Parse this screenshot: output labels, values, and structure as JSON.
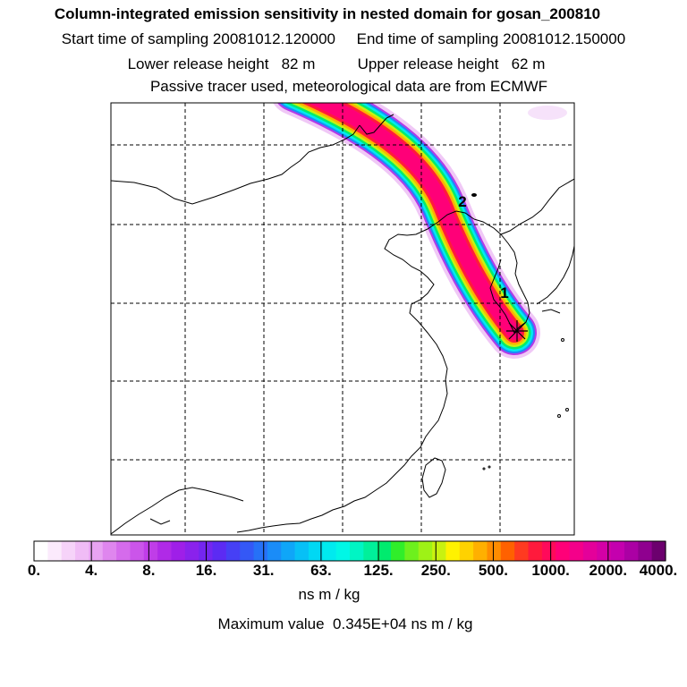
{
  "header": {
    "title": "Column-integrated emission sensitivity in nested domain for gosan_200810",
    "line2": "Start time of sampling 20081012.120000     End time of sampling 20081012.150000",
    "line3": "Lower release height   82 m          Upper release height   62 m",
    "line4": "Passive tracer used, meteorological data are from ECMWF"
  },
  "trajectory_labels": [
    "2",
    "1"
  ],
  "colorbar": {
    "tick_labels": [
      "0.",
      "4.",
      "8.",
      "16.",
      "31.",
      "63.",
      "125.",
      "250.",
      "500.",
      "1000.",
      "2000.",
      "4000."
    ],
    "units": "ns m / kg",
    "max_value_text": "Maximum value  0.345E+04 ns m / kg",
    "colors": [
      "#ffffff",
      "#fbeafc",
      "#f6d3f9",
      "#f0bcf6",
      "#e8a3f2",
      "#df86ee",
      "#d56bec",
      "#cb55ea",
      "#c03de8",
      "#b02ae7",
      "#9f1fe8",
      "#8a22ec",
      "#7426f0",
      "#5c2bf3",
      "#4640f5",
      "#3458f6",
      "#2671f7",
      "#1a8cf8",
      "#0fa6f8",
      "#07c0f6",
      "#00d8f4",
      "#00eaef",
      "#00f7e6",
      "#00f5c4",
      "#00f09a",
      "#00eb6e",
      "#30ee2a",
      "#6df01d",
      "#9ef216",
      "#c8f210",
      "#fff200",
      "#ffd200",
      "#ffb000",
      "#ff8c00",
      "#ff6100",
      "#ff3a20",
      "#ff1a3c",
      "#ff0a5a",
      "#ff0078",
      "#f4008a",
      "#e4009a",
      "#d400a6",
      "#c400ae",
      "#ab00a4",
      "#8f008f",
      "#6c006e"
    ]
  },
  "colors": {
    "background": "#ffffff",
    "coast": "#000000",
    "grid": "#000000"
  }
}
